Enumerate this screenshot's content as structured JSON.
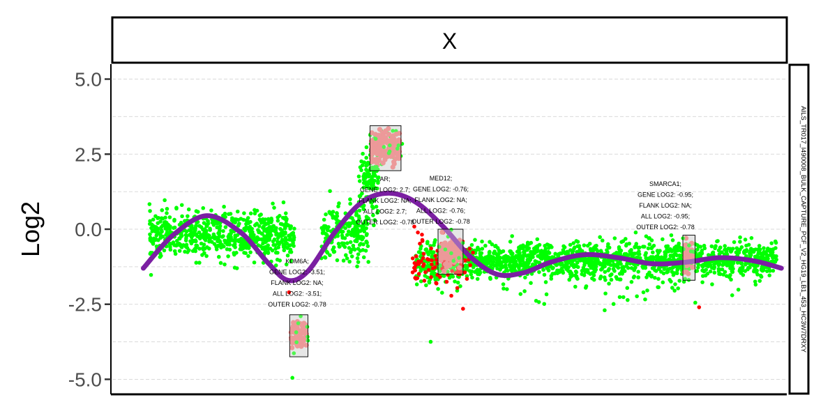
{
  "chart_data": {
    "type": "scatter",
    "facet_label": "X",
    "side_label": "AILS_TR017_l490008_BULK_CAPTURE_PCF_V2_HG19_LB1_453_HC3W7DRXY",
    "ylabel": "Log2",
    "ylim": [
      -5.5,
      5.5
    ],
    "yticks": [
      5.0,
      2.5,
      0.0,
      -2.5,
      -5.0
    ],
    "ytick_labels": [
      "5.0",
      "2.5",
      "0.0",
      "-2.5",
      "-5.0"
    ],
    "grid": true,
    "x_extent": [
      0,
      100
    ],
    "colors": {
      "background_points": "#00ff00",
      "flagged_points": "#ff0000",
      "gene_points": "#f07070",
      "trend_line": "#7b1fa2",
      "gene_box_fill": "#e6e6e6",
      "grid": "#d9d9d9"
    },
    "segments": [
      {
        "x0": 5.5,
        "x1": 27,
        "mean": -0.2,
        "sd": 0.38
      },
      {
        "x0": 31,
        "x1": 38,
        "mean": -0.15,
        "sd": 0.45
      },
      {
        "x0": 37,
        "x1": 39.5,
        "mean": 1.7,
        "sd": 0.55
      },
      {
        "x0": 45,
        "x1": 49.5,
        "mean": -1.2,
        "sd": 0.35
      },
      {
        "x0": 49.5,
        "x1": 98.5,
        "mean": -1.05,
        "sd": 0.3
      }
    ],
    "trend": [
      {
        "x": 4.6,
        "y": -1.3
      },
      {
        "x": 9,
        "y": -0.2
      },
      {
        "x": 14,
        "y": 0.45
      },
      {
        "x": 19,
        "y": -0.1
      },
      {
        "x": 23,
        "y": -1.1
      },
      {
        "x": 26,
        "y": -1.7
      },
      {
        "x": 29,
        "y": -1.4
      },
      {
        "x": 33,
        "y": -0.1
      },
      {
        "x": 37,
        "y": 0.9
      },
      {
        "x": 41,
        "y": 1.2
      },
      {
        "x": 45,
        "y": 0.9
      },
      {
        "x": 49,
        "y": 0.1
      },
      {
        "x": 53,
        "y": -0.9
      },
      {
        "x": 57,
        "y": -1.5
      },
      {
        "x": 61,
        "y": -1.45
      },
      {
        "x": 65,
        "y": -1.1
      },
      {
        "x": 70,
        "y": -0.85
      },
      {
        "x": 75,
        "y": -0.95
      },
      {
        "x": 80,
        "y": -1.15
      },
      {
        "x": 85,
        "y": -1.1
      },
      {
        "x": 90,
        "y": -0.95
      },
      {
        "x": 95,
        "y": -1.05
      },
      {
        "x": 99.2,
        "y": -1.3
      }
    ],
    "genes": [
      {
        "name": "KDM6A",
        "x0": 26.3,
        "x1": 29,
        "ylo": -4.25,
        "yhi": -2.85,
        "mean": -3.51,
        "lines": [
          "KDM6A;",
          "GENE LOG2: -3.51;",
          "FLANK LOG2: NA;",
          "ALL LOG2: -3.51;",
          "OUTER LOG2: -0.78"
        ]
      },
      {
        "name": "AR",
        "x0": 38.2,
        "x1": 42.8,
        "ylo": 1.95,
        "yhi": 3.45,
        "mean": 2.7,
        "lines": [
          "AR;",
          "GENE LOG2: 2.7;",
          "FLANK LOG2: NA;",
          "ALL LOG2: 2.7;",
          "OUTER LOG2: -0.78"
        ]
      },
      {
        "name": "MED12",
        "x0": 48.3,
        "x1": 52,
        "ylo": -1.5,
        "yhi": 0.0,
        "mean": -0.76,
        "lines": [
          "MED12;",
          "GENE LOG2: -0.76;",
          "FLANK LOG2: NA;",
          "ALL LOG2: -0.76;",
          "OUTER LOG2: -0.78"
        ]
      },
      {
        "name": "SMARCA1",
        "x0": 84.6,
        "x1": 86.4,
        "ylo": -1.7,
        "yhi": -0.2,
        "mean": -0.95,
        "lines": [
          "SMARCA1;",
          "GENE LOG2: -0.95;",
          "FLANK LOG2: NA;",
          "ALL LOG2: -0.95;",
          "OUTER LOG2: -0.78"
        ]
      }
    ],
    "outliers": [
      {
        "x": 26.7,
        "y": -4.95,
        "c": "green"
      },
      {
        "x": 47.2,
        "y": -3.75,
        "c": "green"
      },
      {
        "x": 52,
        "y": -2.65,
        "c": "red"
      },
      {
        "x": 87,
        "y": -2.6,
        "c": "red"
      },
      {
        "x": 73,
        "y": -2.7,
        "c": "green"
      },
      {
        "x": 26.2,
        "y": -2.1,
        "c": "red"
      }
    ]
  }
}
